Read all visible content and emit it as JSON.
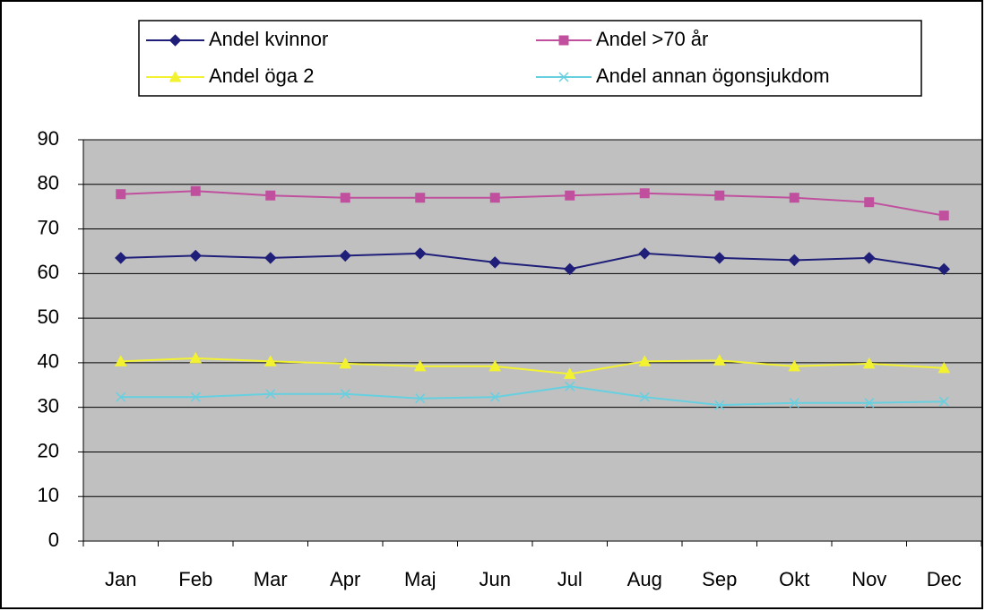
{
  "chart_data": {
    "type": "line",
    "categories": [
      "Jan",
      "Feb",
      "Mar",
      "Apr",
      "Maj",
      "Jun",
      "Jul",
      "Aug",
      "Sep",
      "Okt",
      "Nov",
      "Dec"
    ],
    "series": [
      {
        "name": "Andel kvinnor",
        "color": "#1f1f7a",
        "marker": "diamond",
        "values": [
          63.5,
          64,
          63.5,
          64,
          64.5,
          62.5,
          61,
          64.5,
          63.5,
          63,
          63.5,
          61
        ]
      },
      {
        "name": "Andel >70 år",
        "color": "#c0509e",
        "marker": "square",
        "values": [
          77.8,
          78.5,
          77.5,
          77,
          77,
          77,
          77.5,
          78,
          77.5,
          77,
          76,
          73
        ]
      },
      {
        "name": "Andel öga 2",
        "color": "#f2f230",
        "marker": "triangle",
        "values": [
          40.3,
          41,
          40.3,
          39.8,
          39.2,
          39.2,
          37.5,
          40.3,
          40.5,
          39.2,
          39.8,
          38.8
        ]
      },
      {
        "name": "Andel annan ögonsjukdom",
        "color": "#66d0e0",
        "marker": "x",
        "values": [
          32.3,
          32.3,
          33,
          33,
          32,
          32.3,
          34.7,
          32.3,
          30.5,
          31,
          31,
          31.3
        ]
      }
    ],
    "ylim": [
      0,
      90
    ],
    "yticks": [
      0,
      10,
      20,
      30,
      40,
      50,
      60,
      70,
      80,
      90
    ],
    "grid": true,
    "legend": "top",
    "plot_background": "#c0c0c0"
  }
}
